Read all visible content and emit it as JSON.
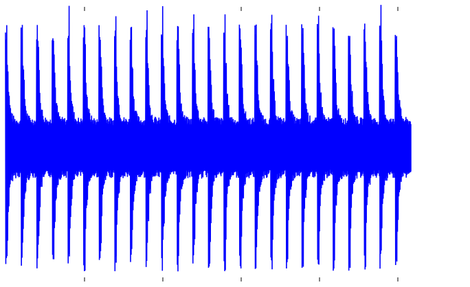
{
  "chart_data": {
    "type": "line",
    "title": "",
    "xlabel": "",
    "ylabel": "",
    "grid": false,
    "legend": "none",
    "xlim": [
      0,
      30
    ],
    "ylim": [
      -1,
      1
    ],
    "x_tick_values": [
      5,
      10,
      15,
      20,
      25
    ],
    "signal": {
      "burst_count": 26,
      "burst_period": 1,
      "x_start": 0,
      "x_end": 26,
      "peak_amplitude": 0.95,
      "core_band_amplitude": 0.2,
      "samples_per_burst": 50
    },
    "series": [
      {
        "color": "#0000ff"
      }
    ]
  }
}
